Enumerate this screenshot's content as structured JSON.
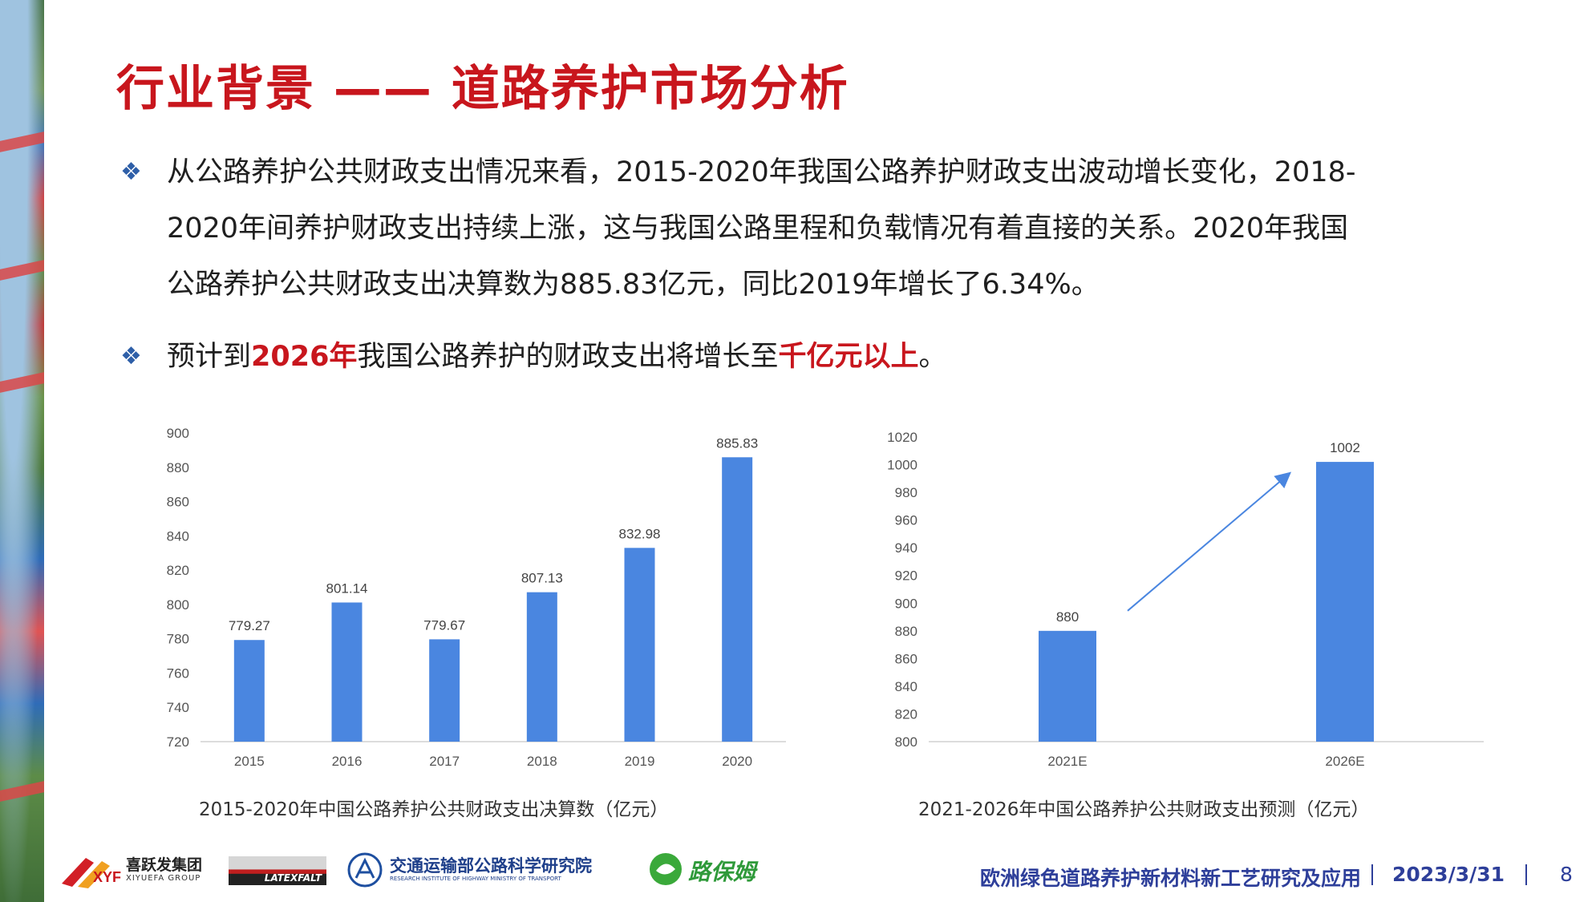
{
  "title": "行业背景 —— 道路养护市场分析",
  "bullets": [
    {
      "mark": "❖",
      "line1": "从公路养护公共财政支出情况来看，2015-2020年我国公路养护财政支出波动增长变化，2018-",
      "line2": "2020年间养护财政支出持续上涨，这与我国公路里程和负载情况有着直接的关系。2020年我国",
      "line3": "公路养护公共财政支出决算数为885.83亿元，同比2019年增长了6.34%。"
    },
    {
      "mark": "❖",
      "pre": "预计到",
      "hl1": "2026年",
      "mid": "我国公路养护的财政支出将增长至",
      "hl2": "千亿元以上",
      "post": "。"
    }
  ],
  "chart_data": [
    {
      "type": "bar",
      "categories": [
        "2015",
        "2016",
        "2017",
        "2018",
        "2019",
        "2020"
      ],
      "values": [
        779.27,
        801.14,
        779.67,
        807.13,
        832.98,
        885.83
      ],
      "value_labels": [
        "779.27",
        "801.14",
        "779.67",
        "807.13",
        "832.98",
        "885.83"
      ],
      "ylim": [
        720,
        900
      ],
      "yticks": [
        "720",
        "740",
        "760",
        "780",
        "800",
        "820",
        "840",
        "860",
        "880",
        "900"
      ],
      "grid": false,
      "color": "#4a86e0",
      "caption": "2015-2020年中国公路养护公共财政支出决算数（亿元）"
    },
    {
      "type": "bar",
      "categories": [
        "2021E",
        "2026E"
      ],
      "values": [
        880,
        1002
      ],
      "value_labels": [
        "880",
        "1002"
      ],
      "ylim": [
        800,
        1020
      ],
      "yticks": [
        "800",
        "820",
        "840",
        "860",
        "880",
        "900",
        "920",
        "940",
        "960",
        "980",
        "1000",
        "1020"
      ],
      "grid": false,
      "color": "#4a86e0",
      "arrow": true,
      "caption": "2021-2026年中国公路养护公共财政支出预测（亿元）"
    }
  ],
  "footer": {
    "logo1_cn": "喜跃发集团",
    "logo1_en": "XIYUEFA GROUP",
    "logo1_mark": "XYF",
    "logo2": "LATEXFALT",
    "logo3_cn": "交通运输部公路科学研究院",
    "logo3_en": "RESEARCH INSTITUTE OF HIGHWAY MINISTRY OF TRANSPORT",
    "logo4": "路保姆",
    "event": "欧洲绿色道路养护新材料新工艺研究及应用",
    "date": "2023/3/31",
    "page": "8"
  }
}
